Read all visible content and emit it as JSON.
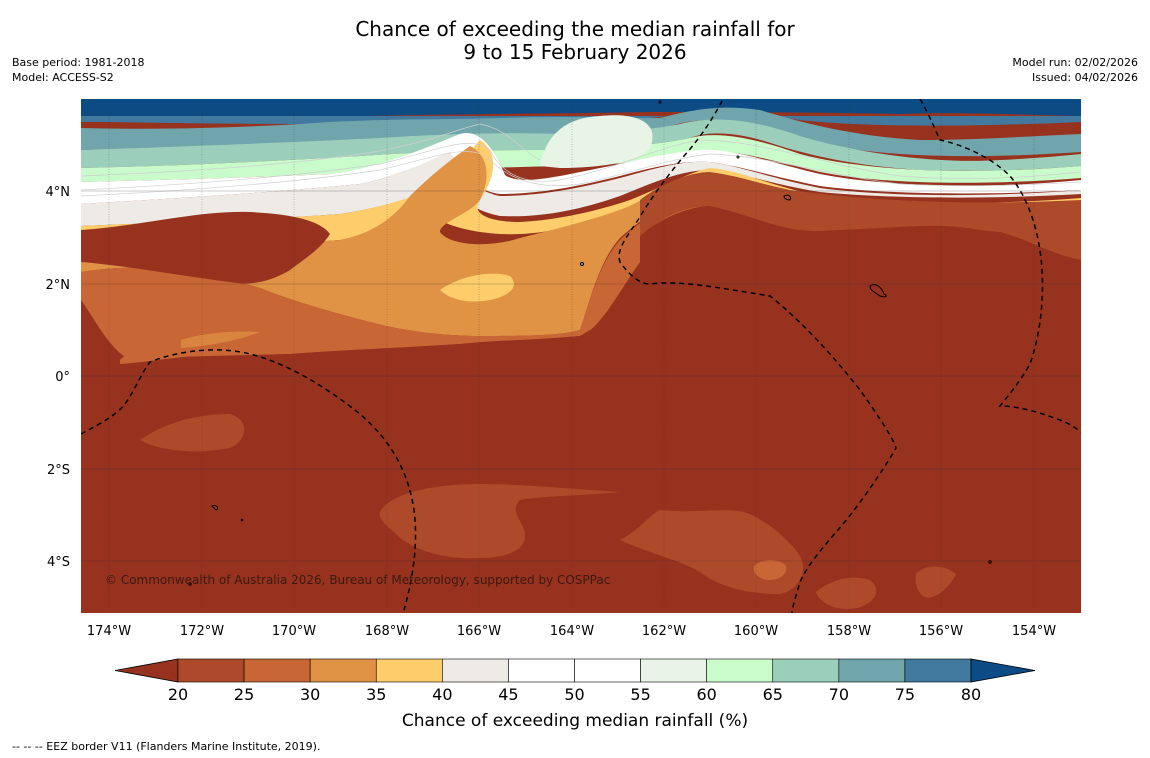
{
  "title": {
    "line1": "Chance of exceeding the median rainfall for",
    "line2": "9 to 15 February 2026"
  },
  "meta_left": {
    "base_period": "Base period: 1981-2018",
    "model": "Model: ACCESS-S2"
  },
  "meta_right": {
    "model_run": "Model run: 02/02/2026",
    "issued": "Issued: 04/02/2026"
  },
  "map": {
    "lat_labels": [
      "4°N",
      "2°N",
      "0°",
      "2°S",
      "4°S"
    ],
    "lon_labels": [
      "174°W",
      "172°W",
      "170°W",
      "168°W",
      "166°W",
      "164°W",
      "162°W",
      "160°W",
      "158°W",
      "156°W",
      "154°W"
    ],
    "copyright": "© Commonwealth of Australia 2026, Bureau of Meteorology, supported by COSPPac"
  },
  "colorbar": {
    "title": "Chance of exceeding median rainfall (%)",
    "ticks": [
      "20",
      "25",
      "30",
      "35",
      "40",
      "45",
      "50",
      "55",
      "60",
      "65",
      "70",
      "75",
      "80"
    ],
    "colors": [
      "#97321f",
      "#ad4a29",
      "#c96635",
      "#e09345",
      "#fdcd6b",
      "#eeeae6",
      "#ffffff",
      "#ffffff",
      "#e8f5e6",
      "#c9fbcb",
      "#9ccfbb",
      "#70a5ac",
      "#41799f",
      "#0d4b84"
    ]
  },
  "footnote": "--  --  -- EEZ border V11 (Flanders Marine Institute, 2019)."
}
